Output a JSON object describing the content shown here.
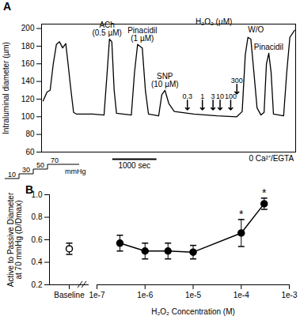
{
  "chart_data": [
    {
      "type": "line",
      "panel_label": "A",
      "ylabel": "Intraluminal diameter (µm)",
      "color": "#000000",
      "x": [
        35,
        124,
        194,
        265,
        336,
        406,
        477,
        548,
        600,
        654,
        724,
        795,
        1150,
        1414,
        1484,
        1537,
        1590,
        1643,
        1696,
        2032,
        2103,
        2173,
        2279,
        2350,
        2420,
        2650,
        2721,
        2792,
        2880,
        3004,
        3446,
        3976,
        4418,
        4540,
        4610,
        4670,
        4736,
        4806,
        4877,
        4965,
        5036,
        5089,
        5142,
        5195,
        5248,
        5478,
        5548,
        5619,
        5725
      ],
      "values": [
        118,
        128,
        130,
        160,
        182,
        185,
        178,
        183,
        160,
        135,
        105,
        103,
        103,
        102,
        150,
        188,
        185,
        130,
        104,
        102,
        150,
        182,
        178,
        130,
        103,
        101,
        125,
        130,
        115,
        106,
        103,
        101,
        100,
        106,
        170,
        190,
        188,
        150,
        110,
        102,
        105,
        160,
        172,
        150,
        103,
        101,
        150,
        190,
        198
      ],
      "xlim": [
        0,
        5750
      ],
      "ylim": [
        60,
        205
      ],
      "yticks": [
        60,
        80,
        100,
        120,
        140,
        160,
        180,
        200
      ],
      "tick_labels": "y",
      "annotations": [
        {
          "text": "ACh\n(0.5 µM)",
          "x": 1480,
          "y": 192
        },
        {
          "text": "Pinacidil\n(1 µM)",
          "x": 2280,
          "y": 186
        },
        {
          "text": "SNP\n(10 µM)",
          "x": 2790,
          "y": 134
        },
        {
          "text": "H₂O₂ (µM)",
          "x": 3900,
          "y": 205
        },
        {
          "text": "W/O",
          "x": 4850,
          "y": 196
        },
        {
          "text": "Pinacidil",
          "x": 5140,
          "y": 176
        },
        {
          "text": "0 Ca²⁺/EGTA",
          "x": 5200,
          "y": 50
        }
      ],
      "additions": [
        {
          "dose": 0.3,
          "x": 3300,
          "y": 108
        },
        {
          "dose": 1,
          "x": 3640,
          "y": 108
        },
        {
          "dose": 3,
          "x": 3880,
          "y": 108
        },
        {
          "dose": 10,
          "x": 4040,
          "y": 108
        },
        {
          "dose": 100,
          "x": 4280,
          "y": 108
        },
        {
          "dose": 300,
          "x": 4420,
          "y": 126
        }
      ],
      "scale_bar": {
        "label": "1000 sec",
        "x": 1600,
        "length": 1000
      },
      "pressure_steps": {
        "values": [
          10,
          30,
          50,
          70
        ],
        "unit": "mmHg"
      }
    },
    {
      "type": "scatter",
      "panel_label": "B",
      "xlabel": "H₂O₂ Concentration (M)",
      "ylabel": [
        "Active to Passive Diameter",
        "at 70 mmHg (D/Dmax)"
      ],
      "log": "x",
      "color": "#000000",
      "marker": "filled",
      "x": [
        3e-07,
        1e-06,
        3e-06,
        1e-05,
        0.0001,
        0.0003
      ],
      "values": [
        0.57,
        0.5,
        0.5,
        0.49,
        0.66,
        0.92
      ],
      "errors": [
        0.07,
        0.07,
        0.07,
        0.06,
        0.12,
        0.05
      ],
      "baseline": {
        "label": "Baseline",
        "value": 0.52,
        "error": 0.05,
        "marker": "open"
      },
      "xlim": [
        1e-07,
        0.001
      ],
      "xticks": [
        {
          "value": 1e-07,
          "label": "1e-7"
        },
        {
          "value": 1e-06,
          "label": "1e-6"
        },
        {
          "value": 1e-05,
          "label": "1e-5"
        },
        {
          "value": 0.0001,
          "label": "1e-4"
        },
        {
          "value": 0.001,
          "label": "1e-3"
        }
      ],
      "ylim": [
        0.2,
        1.0
      ],
      "yticks": [
        0.2,
        0.4,
        0.6,
        0.8,
        {
          "value": 1.0,
          "label": "1.0"
        }
      ],
      "annotations": [
        {
          "text": "*",
          "x": 0.0001,
          "y": 0.79
        },
        {
          "text": "*",
          "x": 0.0003,
          "y": 0.98
        }
      ]
    }
  ]
}
